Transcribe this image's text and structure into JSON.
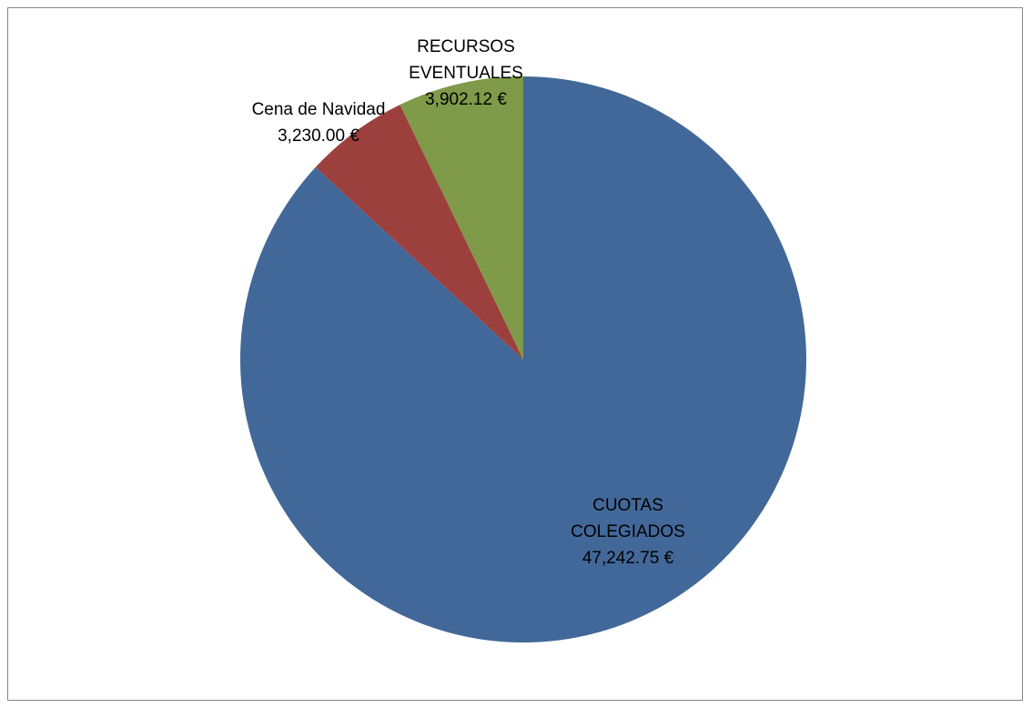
{
  "chart_data": {
    "type": "pie",
    "title": "",
    "start_angle_deg": 0,
    "direction": "clockwise",
    "slices": [
      {
        "name": "CUOTAS COLEGIADOS",
        "value": 47242.75,
        "label_lines": [
          "CUOTAS",
          "COLEGIADOS",
          "47,242.75 €"
        ],
        "color": "#426899"
      },
      {
        "name": "Cena de Navidad",
        "value": 3230.0,
        "label_lines": [
          "Cena de Navidad",
          "3,230.00 €"
        ],
        "color": "#9B403D"
      },
      {
        "name": "RECURSOS EVENTUALES",
        "value": 3902.12,
        "label_lines": [
          "RECURSOS",
          "EVENTUALES",
          "3,902.12 €"
        ],
        "color": "#7F9A48"
      }
    ]
  }
}
